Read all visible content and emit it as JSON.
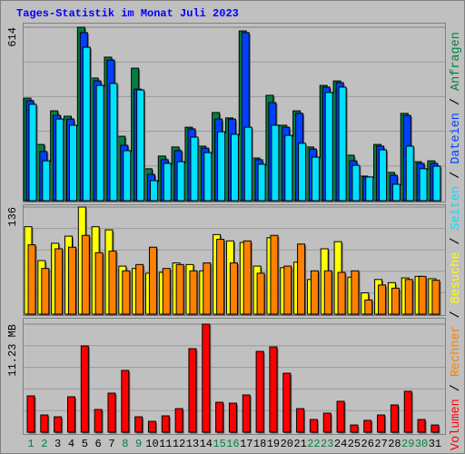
{
  "chart_data": [
    {
      "type": "bar",
      "title": "Tages-Statistik im Monat Juli 2023",
      "ylim": [
        0,
        614
      ],
      "yticks": [
        614
      ],
      "series": [
        {
          "name": "Anfragen",
          "color": "#008040",
          "values": [
            363,
            199,
            318,
            299,
            614,
            434,
            508,
            228,
            469,
            113,
            158,
            190,
            260,
            193,
            312,
            293,
            601,
            151,
            373,
            267,
            318,
            190,
            408,
            424,
            161,
            87,
            199,
            100,
            309,
            138,
            141
          ]
        },
        {
          "name": "Dateien",
          "color": "#0040ff",
          "values": [
            354,
            174,
            302,
            289,
            595,
            424,
            498,
            196,
            395,
            93,
            145,
            177,
            254,
            186,
            289,
            289,
            595,
            145,
            347,
            260,
            309,
            183,
            402,
            418,
            141,
            84,
            193,
            90,
            302,
            132,
            132
          ]
        },
        {
          "name": "Seiten",
          "color": "#00e0ff",
          "values": [
            341,
            141,
            289,
            267,
            543,
            408,
            415,
            177,
            392,
            71,
            132,
            138,
            225,
            170,
            244,
            235,
            260,
            129,
            267,
            231,
            203,
            154,
            383,
            402,
            125,
            84,
            180,
            58,
            193,
            113,
            122
          ]
        }
      ]
    },
    {
      "type": "bar",
      "ylim": [
        0,
        136
      ],
      "yticks": [
        136
      ],
      "series": [
        {
          "name": "Besuche",
          "color": "#ffff00",
          "values": [
            111,
            68,
            90,
            99,
            136,
            111,
            107,
            61,
            58,
            52,
            53,
            65,
            63,
            55,
            101,
            93,
            91,
            61,
            97,
            59,
            66,
            44,
            83,
            92,
            47,
            27,
            44,
            40,
            46,
            48,
            45
          ]
        },
        {
          "name": "Rechner",
          "color": "#ff8000",
          "values": [
            88,
            58,
            83,
            85,
            100,
            78,
            80,
            55,
            63,
            85,
            58,
            63,
            55,
            65,
            95,
            65,
            93,
            52,
            100,
            61,
            89,
            55,
            55,
            53,
            55,
            18,
            37,
            33,
            44,
            48,
            43
          ]
        }
      ]
    },
    {
      "type": "bar",
      "ylim": [
        0,
        11.23
      ],
      "yticks": [
        {
          "value": 11.23,
          "label": "11.23 MB"
        }
      ],
      "categories": [
        "1",
        "2",
        "3",
        "4",
        "5",
        "6",
        "7",
        "8",
        "9",
        "10",
        "11",
        "12",
        "13",
        "14",
        "15",
        "16",
        "17",
        "18",
        "19",
        "20",
        "21",
        "22",
        "23",
        "24",
        "25",
        "26",
        "27",
        "28",
        "29",
        "30",
        "31"
      ],
      "highlight_categories": [
        "1",
        "2",
        "8",
        "9",
        "15",
        "16",
        "22",
        "23",
        "29",
        "30"
      ],
      "highlight_color": "#008040",
      "label_color": "#000000",
      "series": [
        {
          "name": "Volumen",
          "color": "#ff0000",
          "values": [
            3.77,
            1.79,
            1.6,
            3.68,
            8.97,
            2.36,
            4.06,
            6.42,
            1.6,
            1.13,
            1.7,
            2.45,
            8.68,
            11.23,
            3.11,
            3.02,
            3.87,
            8.4,
            8.87,
            6.13,
            2.45,
            1.32,
            1.98,
            3.21,
            0.75,
            1.23,
            1.79,
            2.83,
            4.25,
            1.32,
            0.75
          ]
        }
      ]
    }
  ],
  "legend_separator": "/"
}
